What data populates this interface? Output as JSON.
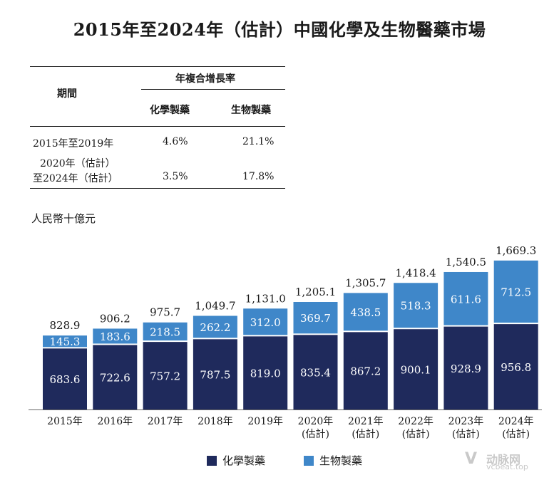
{
  "title": "2015年至2024年（估計）中國化學及生物醫藥市場",
  "cagr_table": {
    "period_header": "期間",
    "cagr_header": "年複合增長率",
    "col_chem": "化學製藥",
    "col_bio": "生物製藥",
    "rows": [
      {
        "period_line1": "2015年至2019年",
        "period_line2": "",
        "chem": "4.6%",
        "bio": "21.1%"
      },
      {
        "period_line1": "2020年（估計）",
        "period_line2": "至2024年（估計）",
        "chem": "3.5%",
        "bio": "17.8%"
      }
    ]
  },
  "unit_label": "人民幣十億元",
  "legend": {
    "chem": "化學製藥",
    "bio": "生物製藥"
  },
  "colors": {
    "chem": "#1f2a5c",
    "bio": "#3f87c9"
  },
  "watermark": {
    "text": "动脉网",
    "sub": "vcbeat.top"
  },
  "chart_data": {
    "type": "bar",
    "stacked": true,
    "title": "2015年至2024年（估計）中國化學及生物醫藥市場",
    "ylabel": "人民幣十億元",
    "categories": [
      "2015年",
      "2016年",
      "2017年",
      "2018年",
      "2019年",
      "2020年\n(估計)",
      "2021年\n(估計)",
      "2022年\n(估計)",
      "2023年\n(估計)",
      "2024年\n(估計)"
    ],
    "series": [
      {
        "name": "化學製藥",
        "values": [
          683.6,
          722.6,
          757.2,
          787.5,
          819.0,
          835.4,
          867.2,
          900.1,
          928.9,
          956.8
        ],
        "labels": [
          "683.6",
          "722.6",
          "757.2",
          "787.5",
          "819.0",
          "835.4",
          "867.2",
          "900.1",
          "928.9",
          "956.8"
        ]
      },
      {
        "name": "生物製藥",
        "values": [
          145.3,
          183.6,
          218.5,
          262.2,
          312.0,
          369.7,
          438.5,
          518.3,
          611.6,
          712.5
        ],
        "labels": [
          "145.3",
          "183.6",
          "218.5",
          "262.2",
          "312.0",
          "369.7",
          "438.5",
          "518.3",
          "611.6",
          "712.5"
        ]
      }
    ],
    "totals": [
      "828.9",
      "906.2",
      "975.7",
      "1,049.7",
      "1,131.0",
      "1,205.1",
      "1,305.7",
      "1,418.4",
      "1,540.5",
      "1,669.3"
    ],
    "legend_position": "bottom",
    "grid": false
  }
}
